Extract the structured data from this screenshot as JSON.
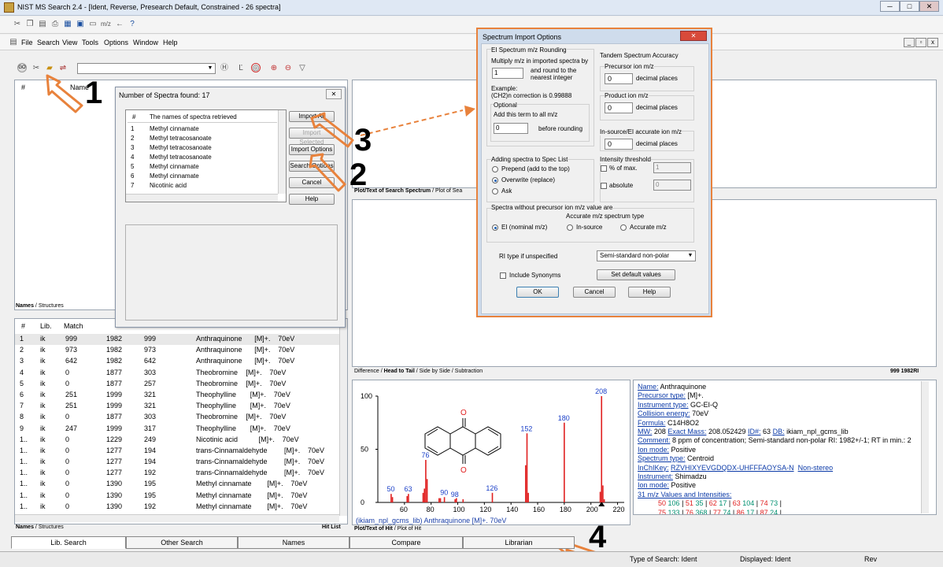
{
  "window": {
    "title": "NIST MS Search 2.4 - [Ident, Reverse, Presearch Default, Constrained - 26 spectra]"
  },
  "menu": [
    "File",
    "Search",
    "View",
    "Tools",
    "Options",
    "Window",
    "Help"
  ],
  "names_panel": {
    "headers": [
      "#",
      "",
      "Name"
    ],
    "tabs": [
      "Names",
      "Structures"
    ]
  },
  "annotations": {
    "n1": "1",
    "n2": "2",
    "n3": "3",
    "n4": "4"
  },
  "num_dialog": {
    "title": "Number of Spectra found: 17",
    "col_hash": "#",
    "col_names": "The names of spectra retrieved",
    "rows": [
      {
        "n": "1",
        "name": "Methyl cinnamate"
      },
      {
        "n": "2",
        "name": "Methyl tetracosanoate"
      },
      {
        "n": "3",
        "name": "Methyl tetracosanoate"
      },
      {
        "n": "4",
        "name": "Methyl tetracosanoate"
      },
      {
        "n": "5",
        "name": "Methyl cinnamate"
      },
      {
        "n": "6",
        "name": "Methyl cinnamate"
      },
      {
        "n": "7",
        "name": "Nicotinic acid"
      }
    ],
    "buttons": {
      "import_all": "Import All",
      "import_selected": "Import Selected",
      "import_options": "Import Options",
      "search_options": "Search Options",
      "cancel": "Cancel",
      "help": "Help"
    }
  },
  "hit_list": {
    "headers": [
      "#",
      "Lib.",
      "Match",
      "",
      "",
      "",
      ""
    ],
    "rows": [
      {
        "n": "1",
        "lib": "ik",
        "match": "999",
        "c3": "1982",
        "c4": "999",
        "name": "Anthraquinone",
        "ion": "[M]+.",
        "ev": "70eV"
      },
      {
        "n": "2",
        "lib": "ik",
        "match": "973",
        "c3": "1982",
        "c4": "973",
        "name": "Anthraquinone",
        "ion": "[M]+.",
        "ev": "70eV"
      },
      {
        "n": "3",
        "lib": "ik",
        "match": "642",
        "c3": "1982",
        "c4": "642",
        "name": "Anthraquinone",
        "ion": "[M]+.",
        "ev": "70eV"
      },
      {
        "n": "4",
        "lib": "ik",
        "match": "0",
        "c3": "1877",
        "c4": "303",
        "name": "Theobromine",
        "ion": "[M]+.",
        "ev": "70eV"
      },
      {
        "n": "5",
        "lib": "ik",
        "match": "0",
        "c3": "1877",
        "c4": "257",
        "name": "Theobromine",
        "ion": "[M]+.",
        "ev": "70eV"
      },
      {
        "n": "6",
        "lib": "ik",
        "match": "251",
        "c3": "1999",
        "c4": "321",
        "name": "Theophylline",
        "ion": "[M]+.",
        "ev": "70eV"
      },
      {
        "n": "7",
        "lib": "ik",
        "match": "251",
        "c3": "1999",
        "c4": "321",
        "name": "Theophylline",
        "ion": "[M]+.",
        "ev": "70eV"
      },
      {
        "n": "8",
        "lib": "ik",
        "match": "0",
        "c3": "1877",
        "c4": "303",
        "name": "Theobromine",
        "ion": "[M]+.",
        "ev": "70eV"
      },
      {
        "n": "9",
        "lib": "ik",
        "match": "247",
        "c3": "1999",
        "c4": "317",
        "name": "Theophylline",
        "ion": "[M]+.",
        "ev": "70eV"
      },
      {
        "n": "1..",
        "lib": "ik",
        "match": "0",
        "c3": "1229",
        "c4": "249",
        "name": "Nicotinic acid",
        "ion": "[M]+.",
        "ev": "70eV"
      },
      {
        "n": "1..",
        "lib": "ik",
        "match": "0",
        "c3": "1277",
        "c4": "194",
        "name": "trans-Cinnamaldehyde",
        "ion": "[M]+.",
        "ev": "70eV"
      },
      {
        "n": "1..",
        "lib": "ik",
        "match": "0",
        "c3": "1277",
        "c4": "194",
        "name": "trans-Cinnamaldehyde",
        "ion": "[M]+.",
        "ev": "70eV"
      },
      {
        "n": "1..",
        "lib": "ik",
        "match": "0",
        "c3": "1277",
        "c4": "192",
        "name": "trans-Cinnamaldehyde",
        "ion": "[M]+.",
        "ev": "70eV"
      },
      {
        "n": "1..",
        "lib": "ik",
        "match": "0",
        "c3": "1390",
        "c4": "195",
        "name": "Methyl cinnamate",
        "ion": "[M]+.",
        "ev": "70eV"
      },
      {
        "n": "1..",
        "lib": "ik",
        "match": "0",
        "c3": "1390",
        "c4": "195",
        "name": "Methyl cinnamate",
        "ion": "[M]+.",
        "ev": "70eV"
      },
      {
        "n": "1..",
        "lib": "ik",
        "match": "0",
        "c3": "1390",
        "c4": "192",
        "name": "Methyl cinnamate",
        "ion": "[M]+.",
        "ev": "70eV"
      }
    ],
    "tabs": [
      "Names",
      "Structures"
    ],
    "label": "Hit List"
  },
  "search_plot": {
    "tabs": [
      "Plot/Text of Search Spectrum",
      "Plot of Sea"
    ]
  },
  "compare_plot": {
    "tabs": [
      "Difference",
      "Head to Tail",
      "Side by Side",
      "Subtraction"
    ],
    "right_label": "999  1982RI"
  },
  "hit_plot": {
    "caption": "(ikiam_npl_gcms_lib) Anthraquinone  [M]+.  70eV",
    "tabs": [
      "Plot/Text of Hit",
      "Plot of Hit"
    ],
    "o_label": "O"
  },
  "chart_data": {
    "type": "bar",
    "title": "",
    "xlabel": "",
    "ylabel": "",
    "xlim": [
      40,
      225
    ],
    "ylim": [
      0,
      100
    ],
    "xticks": [
      60,
      80,
      100,
      120,
      140,
      160,
      180,
      200,
      220
    ],
    "yticks": [
      0,
      50,
      100
    ],
    "peaks": [
      {
        "mz": 50,
        "y": 8,
        "label": "50"
      },
      {
        "mz": 51,
        "y": 5
      },
      {
        "mz": 62,
        "y": 6
      },
      {
        "mz": 63,
        "y": 8,
        "label": "63"
      },
      {
        "mz": 74,
        "y": 9
      },
      {
        "mz": 75,
        "y": 13
      },
      {
        "mz": 76,
        "y": 40,
        "label": "76"
      },
      {
        "mz": 77,
        "y": 22
      },
      {
        "mz": 86,
        "y": 4
      },
      {
        "mz": 87,
        "y": 4
      },
      {
        "mz": 90,
        "y": 5,
        "label": "90"
      },
      {
        "mz": 98,
        "y": 3,
        "label": "98"
      },
      {
        "mz": 99,
        "y": 4
      },
      {
        "mz": 104,
        "y": 3
      },
      {
        "mz": 126,
        "y": 9,
        "label": "126"
      },
      {
        "mz": 151,
        "y": 35
      },
      {
        "mz": 152,
        "y": 65,
        "label": "152"
      },
      {
        "mz": 153,
        "y": 9
      },
      {
        "mz": 180,
        "y": 75,
        "label": "180"
      },
      {
        "mz": 207,
        "y": 10
      },
      {
        "mz": 208,
        "y": 100,
        "label": "208"
      },
      {
        "mz": 209,
        "y": 16
      },
      {
        "mz": 210,
        "y": 3
      }
    ]
  },
  "info": {
    "name_k": "Name:",
    "name_v": "Anthraquinone",
    "prec_k": "Precursor type:",
    "prec_v": "[M]+.",
    "inst_k": "Instrument type:",
    "inst_v": "GC-EI-Q",
    "coll_k": "Collision energy:",
    "coll_v": "70eV",
    "form_k": "Formula:",
    "form_v": "C14H8O2",
    "mw_k": "MW:",
    "mw_v": "208",
    "em_k": "Exact Mass:",
    "em_v": "208.052429",
    "id_k": "ID#:",
    "id_v": "63",
    "db_k": "DB:",
    "db_v": "ikiam_npl_gcms_lib",
    "com_k": "Comment:",
    "com_v": "8 ppm of concentration; Semi-standard non-polar RI: 1982+/-1; RT in min.: 2",
    "ion_k": "Ion mode:",
    "ion_v": "Positive",
    "st_k": "Spectrum type:",
    "st_v": "Centroid",
    "ik_k": "InChIKey:",
    "ik_v": "RZVHIXYEVGDQDX-UHFFFAOYSA-N",
    "ik_x": "Non-stereo",
    "ins_k": "Instrument:",
    "ins_v": "Shimadzu",
    "ion2_k": "Ion mode:",
    "ion2_v": "Positive",
    "mz_k": "31 m/z Values and Intensities:",
    "mz_row1": [
      [
        "50",
        "106"
      ],
      [
        "51",
        "35"
      ],
      [
        "62",
        "17"
      ],
      [
        "63",
        "104"
      ],
      [
        "74",
        "73"
      ]
    ],
    "mz_row2": [
      [
        "75",
        "133"
      ],
      [
        "76",
        "368"
      ],
      [
        "77",
        "74"
      ],
      [
        "86",
        "17"
      ],
      [
        "87",
        "24"
      ]
    ]
  },
  "import_dlg": {
    "title": "Spectrum Import Options",
    "ei_group": "EI Spectrum m/z Rounding",
    "multiply": "Multiply m/z in imported spectra by",
    "multiply_val": "1",
    "round": "and round to the nearest integer",
    "example": "Example:",
    "example2": "(CH2)n correction is 0.99888",
    "optional": "Optional",
    "add_term": "Add this term to all m/z",
    "add_val": "0",
    "before": "before rounding",
    "tandem": "Tandem Spectrum Accuracy",
    "prec": "Precursor ion m/z",
    "prod": "Product ion m/z",
    "insrc": "In-source/EI accurate ion m/z",
    "zero": "0",
    "dp": "decimal places",
    "adding": "Adding spectra to Spec List",
    "prepend": "Prepend (add to the top)",
    "overwrite": "Overwrite (replace)",
    "ask": "Ask",
    "intensity": "Intensity threshold",
    "pct": "% of max.",
    "pct_val": "1",
    "absolute": "absolute",
    "abs_val": "0",
    "without": "Spectra without precursor ion m/z value are",
    "ei": "EI (nominal m/z)",
    "accurate_type": "Accurate m/z spectrum type",
    "insource": "In-source",
    "accurate": "Accurate m/z",
    "ri_label": "RI type if unspecified",
    "ri_val": "Semi-standard non-polar",
    "synonyms": "Include Synonyms",
    "defaults": "Set default values",
    "ok": "OK",
    "cancel": "Cancel",
    "help": "Help"
  },
  "bottom_tabs": [
    "Lib. Search",
    "Other Search",
    "Names",
    "Compare",
    "Librarian"
  ],
  "status": {
    "type": "Type of Search: Ident",
    "displayed": "Displayed: Ident",
    "rev": "Rev"
  }
}
